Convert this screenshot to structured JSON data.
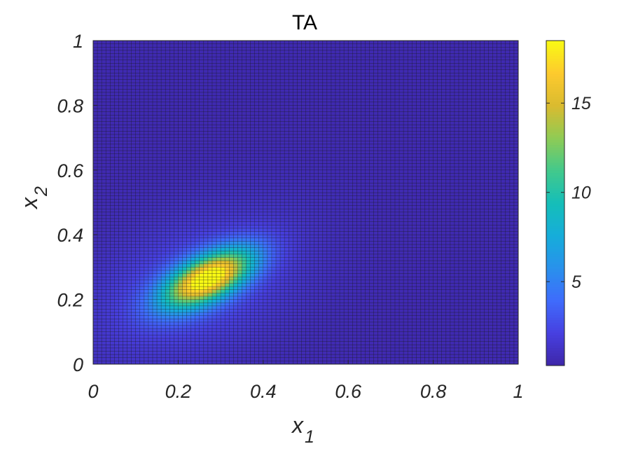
{
  "chart_data": {
    "type": "heatmap",
    "title": "TA",
    "xlabel": {
      "base": "x",
      "sub": "1"
    },
    "ylabel": {
      "base": "x",
      "sub": "2"
    },
    "xlim": [
      0,
      1
    ],
    "ylim": [
      0,
      1
    ],
    "x_ticks": [
      0,
      0.2,
      0.4,
      0.6,
      0.8,
      1
    ],
    "x_tick_labels": [
      "0",
      "0.2",
      "0.4",
      "0.6",
      "0.8",
      "1"
    ],
    "y_ticks": [
      0,
      0.2,
      0.4,
      0.6,
      0.8,
      1
    ],
    "y_tick_labels": [
      "0",
      "0.2",
      "0.4",
      "0.6",
      "0.8",
      "1"
    ],
    "grid_resolution": 100,
    "grid_edge_color": "#1a1a1a",
    "colormap": "parula",
    "colorbar": {
      "position": "right",
      "clim": [
        0.3,
        18.5
      ],
      "ticks": [
        5,
        10,
        15
      ],
      "tick_labels": [
        "5",
        "10",
        "15"
      ]
    },
    "surface": {
      "description_of_form": "background plus elliptical Gaussian peaks",
      "background": 0.6,
      "peaks": [
        {
          "x0": 0.27,
          "y0": 0.265,
          "amplitude": 17.6,
          "sigma_major": 0.085,
          "sigma_minor": 0.042,
          "angle_deg": 38
        },
        {
          "x0": 0.24,
          "y0": 0.24,
          "amplitude": 2.2,
          "sigma_major": 0.19,
          "sigma_minor": 0.13,
          "angle_deg": 40
        }
      ]
    }
  }
}
